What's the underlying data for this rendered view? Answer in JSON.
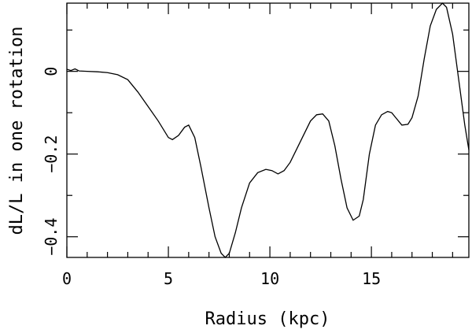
{
  "chart_data": {
    "type": "line",
    "title": "",
    "xlabel": "Radius (kpc)",
    "ylabel": "dL/L in one rotation",
    "xlim": [
      0,
      19.8
    ],
    "ylim": [
      -0.45,
      0.165
    ],
    "grid": false,
    "legend": "none",
    "x_major_ticks": [
      0,
      5,
      10,
      15
    ],
    "x_tick_labels": [
      "0",
      "5",
      "10",
      "15"
    ],
    "y_major_ticks": [
      0,
      -0.2,
      -0.4
    ],
    "y_tick_labels": [
      "0",
      "−0.2",
      "−0.4"
    ],
    "x_minor_step": 1,
    "y_minor_step": 0.1,
    "line_color": "#000000",
    "series": [
      {
        "x": [
          0,
          0.2,
          0.4,
          0.6,
          1.0,
          1.5,
          2.0,
          2.5,
          3.0,
          3.5,
          4.0,
          4.5,
          5.0,
          5.2,
          5.5,
          5.8,
          6.0,
          6.3,
          6.6,
          7.0,
          7.3,
          7.6,
          7.8,
          8.0,
          8.3,
          8.6,
          9.0,
          9.4,
          9.8,
          10.1,
          10.4,
          10.7,
          11.0,
          11.5,
          12.0,
          12.3,
          12.6,
          12.9,
          13.2,
          13.5,
          13.8,
          14.1,
          14.4,
          14.6,
          14.9,
          15.2,
          15.5,
          15.8,
          16.0,
          16.2,
          16.5,
          16.8,
          17.0,
          17.3,
          17.6,
          17.9,
          18.2,
          18.5,
          18.7,
          19.0,
          19.3,
          19.6,
          19.8
        ],
        "y": [
          0.005,
          0.002,
          0.006,
          0.001,
          0.0,
          -0.001,
          -0.003,
          -0.008,
          -0.02,
          -0.05,
          -0.085,
          -0.12,
          -0.16,
          -0.165,
          -0.155,
          -0.135,
          -0.13,
          -0.16,
          -0.23,
          -0.33,
          -0.4,
          -0.44,
          -0.45,
          -0.44,
          -0.39,
          -0.33,
          -0.27,
          -0.245,
          -0.237,
          -0.24,
          -0.248,
          -0.24,
          -0.22,
          -0.17,
          -0.12,
          -0.105,
          -0.103,
          -0.12,
          -0.18,
          -0.26,
          -0.33,
          -0.36,
          -0.35,
          -0.31,
          -0.2,
          -0.13,
          -0.105,
          -0.097,
          -0.1,
          -0.112,
          -0.13,
          -0.128,
          -0.112,
          -0.06,
          0.03,
          0.11,
          0.15,
          0.165,
          0.155,
          0.09,
          -0.02,
          -0.13,
          -0.19
        ]
      }
    ]
  }
}
